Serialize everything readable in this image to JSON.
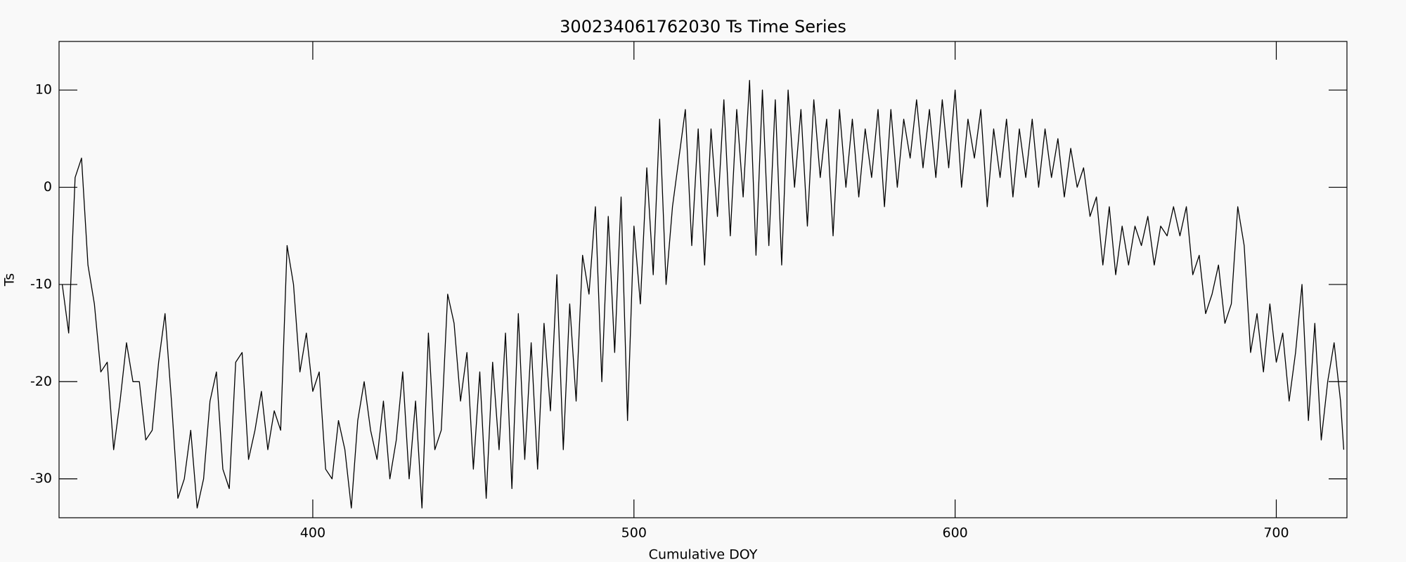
{
  "chart_data": {
    "type": "line",
    "title": "300234061762030 Ts Time Series",
    "x_label": "Cumulative DOY",
    "y_label": "Ts",
    "color": "#000000",
    "x": [
      322,
      324,
      326,
      328,
      330,
      332,
      334,
      336,
      338,
      340,
      342,
      344,
      346,
      348,
      350,
      352,
      354,
      356,
      358,
      360,
      362,
      364,
      366,
      368,
      370,
      372,
      374,
      376,
      378,
      380,
      382,
      384,
      386,
      388,
      390,
      392,
      394,
      396,
      398,
      400,
      402,
      404,
      406,
      408,
      410,
      412,
      414,
      416,
      418,
      420,
      422,
      424,
      426,
      428,
      430,
      432,
      434,
      436,
      438,
      440,
      442,
      444,
      446,
      448,
      450,
      452,
      454,
      456,
      458,
      460,
      462,
      464,
      466,
      468,
      470,
      472,
      474,
      476,
      478,
      480,
      482,
      484,
      486,
      488,
      490,
      492,
      494,
      496,
      498,
      500,
      502,
      504,
      506,
      508,
      510,
      512,
      514,
      516,
      518,
      520,
      522,
      524,
      526,
      528,
      530,
      532,
      534,
      536,
      538,
      540,
      542,
      544,
      546,
      548,
      550,
      552,
      554,
      556,
      558,
      560,
      562,
      564,
      566,
      568,
      570,
      572,
      574,
      576,
      578,
      580,
      582,
      584,
      586,
      588,
      590,
      592,
      594,
      596,
      598,
      600,
      602,
      604,
      606,
      608,
      610,
      612,
      614,
      616,
      618,
      620,
      622,
      624,
      626,
      628,
      630,
      632,
      634,
      636,
      638,
      640,
      642,
      644,
      646,
      648,
      650,
      652,
      654,
      656,
      658,
      660,
      662,
      664,
      666,
      668,
      670,
      672,
      674,
      676,
      678,
      680,
      682,
      684,
      686,
      688,
      690,
      692,
      694,
      696,
      698,
      700,
      702,
      704,
      706,
      708,
      710,
      712,
      714,
      716,
      718,
      720,
      721
    ],
    "values": [
      -10,
      -15,
      1,
      3,
      -8,
      -12,
      -19,
      -18,
      -27,
      -22,
      -16,
      -20,
      -20,
      -26,
      -25,
      -18,
      -13,
      -22,
      -32,
      -30,
      -25,
      -33,
      -30,
      -22,
      -19,
      -29,
      -31,
      -18,
      -17,
      -28,
      -25,
      -21,
      -27,
      -23,
      -25,
      -6,
      -10,
      -19,
      -15,
      -21,
      -19,
      -29,
      -30,
      -24,
      -27,
      -33,
      -24,
      -20,
      -25,
      -28,
      -22,
      -30,
      -26,
      -19,
      -30,
      -22,
      -33,
      -15,
      -27,
      -25,
      -11,
      -14,
      -22,
      -17,
      -29,
      -19,
      -32,
      -18,
      -27,
      -15,
      -31,
      -13,
      -28,
      -16,
      -29,
      -14,
      -23,
      -9,
      -27,
      -12,
      -22,
      -7,
      -11,
      -2,
      -20,
      -3,
      -17,
      -1,
      -24,
      -4,
      -12,
      2,
      -9,
      7,
      -10,
      -2,
      3,
      8,
      -6,
      6,
      -8,
      6,
      -3,
      9,
      -5,
      8,
      -1,
      11,
      -7,
      10,
      -6,
      9,
      -8,
      10,
      0,
      8,
      -4,
      9,
      1,
      7,
      -5,
      8,
      0,
      7,
      -1,
      6,
      1,
      8,
      -2,
      8,
      0,
      7,
      3,
      9,
      2,
      8,
      1,
      9,
      2,
      10,
      0,
      7,
      3,
      8,
      -2,
      6,
      1,
      7,
      -1,
      6,
      1,
      7,
      0,
      6,
      1,
      5,
      -1,
      4,
      0,
      2,
      -3,
      -1,
      -8,
      -2,
      -9,
      -4,
      -8,
      -4,
      -6,
      -3,
      -8,
      -4,
      -5,
      -2,
      -5,
      -2,
      -9,
      -7,
      -13,
      -11,
      -8,
      -14,
      -12,
      -2,
      -6,
      -17,
      -13,
      -19,
      -12,
      -18,
      -15,
      -22,
      -17,
      -10,
      -24,
      -14,
      -26,
      -20,
      -16,
      -22,
      -27
    ],
    "xlim": [
      321,
      722
    ],
    "ylim": [
      -34,
      15
    ],
    "xticks": [
      400,
      500,
      600,
      700
    ],
    "yticks": [
      -30,
      -20,
      -10,
      0,
      10
    ]
  }
}
